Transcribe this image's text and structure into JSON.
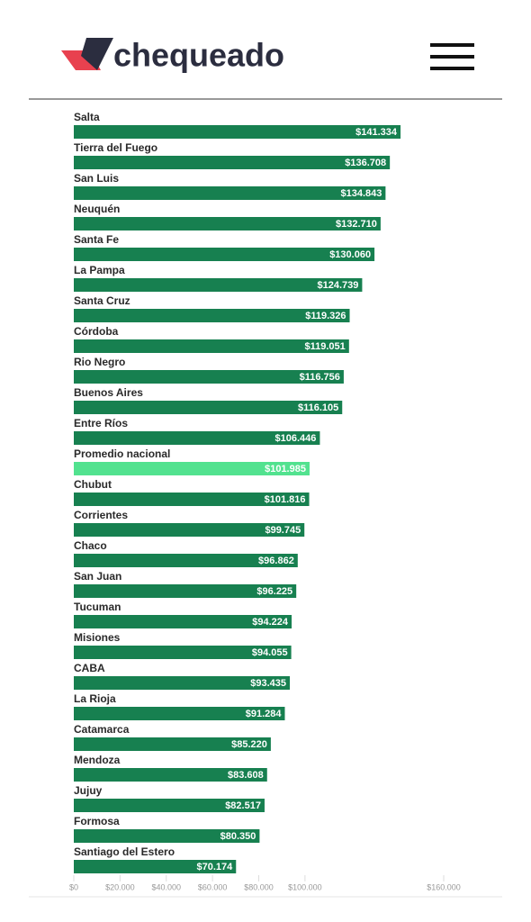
{
  "header": {
    "logo": "chequeado"
  },
  "chart_data": {
    "type": "bar",
    "orientation": "horizontal",
    "categories": [
      "Salta",
      "Tierra del Fuego",
      "San Luis",
      "Neuquén",
      "Santa Fe",
      "La Pampa",
      "Santa Cruz",
      "Córdoba",
      "Rio Negro",
      "Buenos Aires",
      "Entre Ríos",
      "Promedio nacional",
      "Chubut",
      "Corrientes",
      "Chaco",
      "San Juan",
      "Tucuman",
      "Misiones",
      "CABA",
      "La Rioja",
      "Catamarca",
      "Mendoza",
      "Jujuy",
      "Formosa",
      "Santiago del Estero"
    ],
    "values": [
      141334,
      136708,
      134843,
      132710,
      130060,
      124739,
      119326,
      119051,
      116756,
      116105,
      106446,
      101985,
      101816,
      99745,
      96862,
      96225,
      94224,
      94055,
      93435,
      91284,
      85220,
      83608,
      82517,
      80350,
      70174
    ],
    "value_labels": [
      "$141.334",
      "$136.708",
      "$134.843",
      "$132.710",
      "$130.060",
      "$124.739",
      "$119.326",
      "$119.051",
      "$116.756",
      "$116.105",
      "$106.446",
      "$101.985",
      "$101.816",
      "$99.745",
      "$96.862",
      "$96.225",
      "$94.224",
      "$94.055",
      "$93.435",
      "$91.284",
      "$85.220",
      "$83.608",
      "$82.517",
      "$80.350",
      "$70.174"
    ],
    "colors": [
      "#178050",
      "#178050",
      "#178050",
      "#178050",
      "#178050",
      "#178050",
      "#178050",
      "#178050",
      "#178050",
      "#178050",
      "#178050",
      "#52e28f",
      "#178050",
      "#178050",
      "#178050",
      "#178050",
      "#178050",
      "#178050",
      "#178050",
      "#178050",
      "#178050",
      "#178050",
      "#178050",
      "#178050",
      "#178050"
    ],
    "xlim": [
      0,
      160000
    ],
    "xticks": [
      {
        "value": 0,
        "label": "$0"
      },
      {
        "value": 20000,
        "label": "$20.000"
      },
      {
        "value": 40000,
        "label": "$40.000"
      },
      {
        "value": 60000,
        "label": "$60.000"
      },
      {
        "value": 80000,
        "label": "$80.000"
      },
      {
        "value": 100000,
        "label": "$100.000"
      },
      {
        "value": 160000,
        "label": "$160.000"
      }
    ]
  }
}
